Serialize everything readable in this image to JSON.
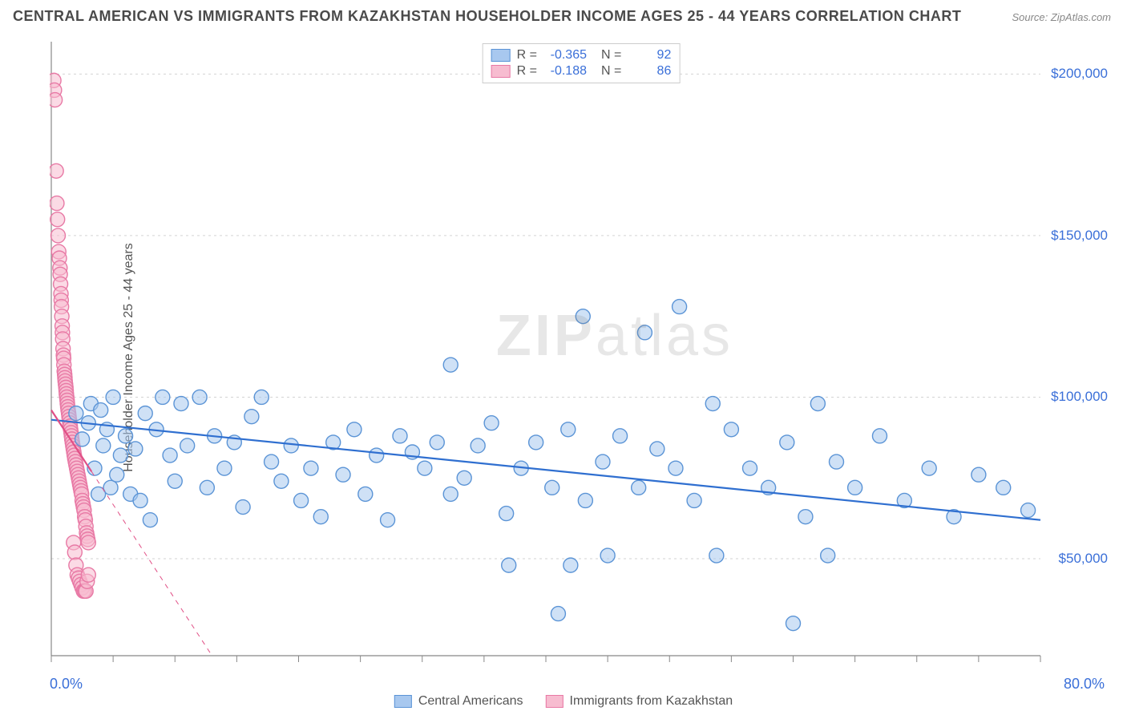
{
  "title": "CENTRAL AMERICAN VS IMMIGRANTS FROM KAZAKHSTAN HOUSEHOLDER INCOME AGES 25 - 44 YEARS CORRELATION CHART",
  "source": "Source: ZipAtlas.com",
  "ylabel": "Householder Income Ages 25 - 44 years",
  "watermark_bold": "ZIP",
  "watermark_light": "atlas",
  "chart": {
    "type": "scatter",
    "xlim": [
      0,
      80
    ],
    "ylim": [
      20000,
      210000
    ],
    "xaxis_label_left": "0.0%",
    "xaxis_label_right": "80.0%",
    "ytick_values": [
      50000,
      100000,
      150000,
      200000
    ],
    "ytick_labels": [
      "$50,000",
      "$100,000",
      "$150,000",
      "$200,000"
    ],
    "xtick_positions": [
      0,
      5,
      10,
      15,
      20,
      25,
      30,
      35,
      40,
      45,
      50,
      55,
      60,
      65,
      70,
      75,
      80
    ],
    "grid_color": "#d3d3d3",
    "grid_dash": "3,4",
    "axis_color": "#888888",
    "background_color": "#ffffff",
    "marker_radius": 9,
    "marker_stroke_width": 1.4,
    "marker_opacity": 0.55,
    "trend_line_width": 2.2,
    "series": [
      {
        "name": "Central Americans",
        "fill_color": "#a8c8ef",
        "stroke_color": "#5b94d6",
        "line_color": "#2f6fd0",
        "R": "-0.365",
        "N": "92",
        "trend": {
          "x1": 0,
          "y1": 93000,
          "x2": 80,
          "y2": 62000,
          "dashed": false
        },
        "points": [
          [
            2,
            95000
          ],
          [
            2.5,
            87000
          ],
          [
            3,
            92000
          ],
          [
            3.2,
            98000
          ],
          [
            3.5,
            78000
          ],
          [
            3.8,
            70000
          ],
          [
            4,
            96000
          ],
          [
            4.2,
            85000
          ],
          [
            4.5,
            90000
          ],
          [
            4.8,
            72000
          ],
          [
            5,
            100000
          ],
          [
            5.3,
            76000
          ],
          [
            5.6,
            82000
          ],
          [
            6,
            88000
          ],
          [
            6.4,
            70000
          ],
          [
            6.8,
            84000
          ],
          [
            7.2,
            68000
          ],
          [
            7.6,
            95000
          ],
          [
            8,
            62000
          ],
          [
            8.5,
            90000
          ],
          [
            9,
            100000
          ],
          [
            9.6,
            82000
          ],
          [
            10,
            74000
          ],
          [
            10.5,
            98000
          ],
          [
            11,
            85000
          ],
          [
            12,
            100000
          ],
          [
            12.6,
            72000
          ],
          [
            13.2,
            88000
          ],
          [
            14,
            78000
          ],
          [
            14.8,
            86000
          ],
          [
            15.5,
            66000
          ],
          [
            16.2,
            94000
          ],
          [
            17,
            100000
          ],
          [
            17.8,
            80000
          ],
          [
            18.6,
            74000
          ],
          [
            19.4,
            85000
          ],
          [
            20.2,
            68000
          ],
          [
            21,
            78000
          ],
          [
            21.8,
            63000
          ],
          [
            22.8,
            86000
          ],
          [
            23.6,
            76000
          ],
          [
            24.5,
            90000
          ],
          [
            25.4,
            70000
          ],
          [
            26.3,
            82000
          ],
          [
            27.2,
            62000
          ],
          [
            28.2,
            88000
          ],
          [
            29.2,
            83000
          ],
          [
            30.2,
            78000
          ],
          [
            31.2,
            86000
          ],
          [
            32.3,
            110000
          ],
          [
            32.3,
            70000
          ],
          [
            33.4,
            75000
          ],
          [
            34.5,
            85000
          ],
          [
            35.6,
            92000
          ],
          [
            36.8,
            64000
          ],
          [
            37,
            48000
          ],
          [
            38,
            78000
          ],
          [
            39.2,
            86000
          ],
          [
            40.5,
            72000
          ],
          [
            41,
            33000
          ],
          [
            41.8,
            90000
          ],
          [
            42,
            48000
          ],
          [
            43,
            125000
          ],
          [
            43.2,
            68000
          ],
          [
            44.6,
            80000
          ],
          [
            45,
            51000
          ],
          [
            46,
            88000
          ],
          [
            47.5,
            72000
          ],
          [
            48,
            120000
          ],
          [
            49,
            84000
          ],
          [
            50.5,
            78000
          ],
          [
            50.8,
            128000
          ],
          [
            52,
            68000
          ],
          [
            53.5,
            98000
          ],
          [
            53.8,
            51000
          ],
          [
            55,
            90000
          ],
          [
            56.5,
            78000
          ],
          [
            58,
            72000
          ],
          [
            59.5,
            86000
          ],
          [
            60,
            30000
          ],
          [
            61,
            63000
          ],
          [
            62,
            98000
          ],
          [
            62.8,
            51000
          ],
          [
            63.5,
            80000
          ],
          [
            65,
            72000
          ],
          [
            67,
            88000
          ],
          [
            69,
            68000
          ],
          [
            71,
            78000
          ],
          [
            73,
            63000
          ],
          [
            75,
            76000
          ],
          [
            77,
            72000
          ],
          [
            79,
            65000
          ]
        ]
      },
      {
        "name": "Immigrants from Kazakhstan",
        "fill_color": "#f7bcd0",
        "stroke_color": "#e879a5",
        "line_color": "#e14f86",
        "R": "-0.188",
        "N": "86",
        "trend": {
          "x1": 0,
          "y1": 96000,
          "x2": 13,
          "y2": 20000,
          "dashed": true
        },
        "points": [
          [
            0.2,
            198000
          ],
          [
            0.25,
            195000
          ],
          [
            0.3,
            192000
          ],
          [
            0.4,
            170000
          ],
          [
            0.45,
            160000
          ],
          [
            0.5,
            155000
          ],
          [
            0.55,
            150000
          ],
          [
            0.6,
            145000
          ],
          [
            0.65,
            143000
          ],
          [
            0.7,
            140000
          ],
          [
            0.72,
            138000
          ],
          [
            0.75,
            135000
          ],
          [
            0.78,
            132000
          ],
          [
            0.8,
            130000
          ],
          [
            0.82,
            128000
          ],
          [
            0.85,
            125000
          ],
          [
            0.88,
            122000
          ],
          [
            0.9,
            120000
          ],
          [
            0.92,
            118000
          ],
          [
            0.95,
            115000
          ],
          [
            0.98,
            113000
          ],
          [
            1.0,
            112000
          ],
          [
            1.02,
            110000
          ],
          [
            1.05,
            108000
          ],
          [
            1.08,
            107000
          ],
          [
            1.1,
            106000
          ],
          [
            1.12,
            105000
          ],
          [
            1.15,
            104000
          ],
          [
            1.18,
            103000
          ],
          [
            1.2,
            102000
          ],
          [
            1.22,
            101000
          ],
          [
            1.25,
            100000
          ],
          [
            1.28,
            99000
          ],
          [
            1.3,
            98000
          ],
          [
            1.33,
            97000
          ],
          [
            1.36,
            96000
          ],
          [
            1.4,
            95000
          ],
          [
            1.43,
            94000
          ],
          [
            1.46,
            93000
          ],
          [
            1.5,
            92000
          ],
          [
            1.53,
            91000
          ],
          [
            1.56,
            90000
          ],
          [
            1.6,
            89000
          ],
          [
            1.63,
            88000
          ],
          [
            1.66,
            87000
          ],
          [
            1.7,
            86000
          ],
          [
            1.74,
            85000
          ],
          [
            1.78,
            84000
          ],
          [
            1.82,
            83000
          ],
          [
            1.86,
            82000
          ],
          [
            1.9,
            81000
          ],
          [
            1.95,
            80000
          ],
          [
            2.0,
            79000
          ],
          [
            2.05,
            78000
          ],
          [
            2.1,
            77000
          ],
          [
            2.15,
            76000
          ],
          [
            2.2,
            75000
          ],
          [
            2.25,
            74000
          ],
          [
            2.3,
            73000
          ],
          [
            2.35,
            72000
          ],
          [
            2.4,
            71000
          ],
          [
            2.45,
            70000
          ],
          [
            2.5,
            68000
          ],
          [
            2.55,
            67000
          ],
          [
            2.6,
            66000
          ],
          [
            2.65,
            65000
          ],
          [
            2.7,
            63000
          ],
          [
            2.75,
            62000
          ],
          [
            2.8,
            60000
          ],
          [
            2.85,
            58000
          ],
          [
            2.9,
            57000
          ],
          [
            2.95,
            56000
          ],
          [
            3.0,
            55000
          ],
          [
            1.8,
            55000
          ],
          [
            1.9,
            52000
          ],
          [
            2.0,
            48000
          ],
          [
            2.1,
            45000
          ],
          [
            2.2,
            44000
          ],
          [
            2.3,
            43000
          ],
          [
            2.4,
            42000
          ],
          [
            2.5,
            41000
          ],
          [
            2.6,
            40000
          ],
          [
            2.7,
            40000
          ],
          [
            2.8,
            40000
          ],
          [
            2.9,
            43000
          ],
          [
            3.0,
            45000
          ]
        ]
      }
    ]
  },
  "legend_top": {
    "r_label": "R =",
    "n_label": "N ="
  },
  "font": {
    "title_size": 18,
    "label_size": 16,
    "tick_size": 17
  },
  "colors": {
    "title": "#4a4a4a",
    "axis_text": "#3a6fd8",
    "body_text": "#555555"
  }
}
